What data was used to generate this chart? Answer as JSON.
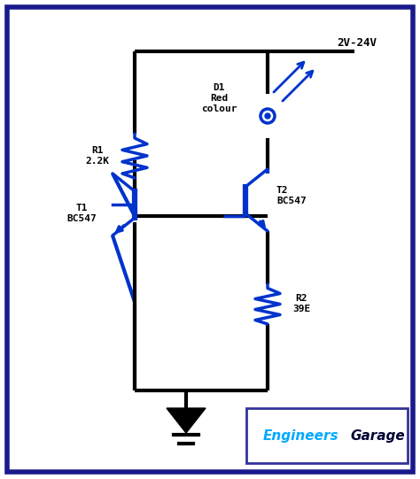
{
  "bg_color": "#ffffff",
  "border_color": "#1a1a8c",
  "wire_color": "#000000",
  "component_color": "#0033cc",
  "text_color": "#000000",
  "title_text": "2V-24V",
  "R1_label": "R1\n2.2K",
  "R2_label": "R2\n39E",
  "D1_label": "D1\nRed\ncolour",
  "T1_label": "T1\nBC547",
  "T2_label": "T2\nBC547",
  "eg_Engineers": "Engineers",
  "eg_Garage": "Garage",
  "fig_width": 4.74,
  "fig_height": 5.41,
  "dpi": 100
}
